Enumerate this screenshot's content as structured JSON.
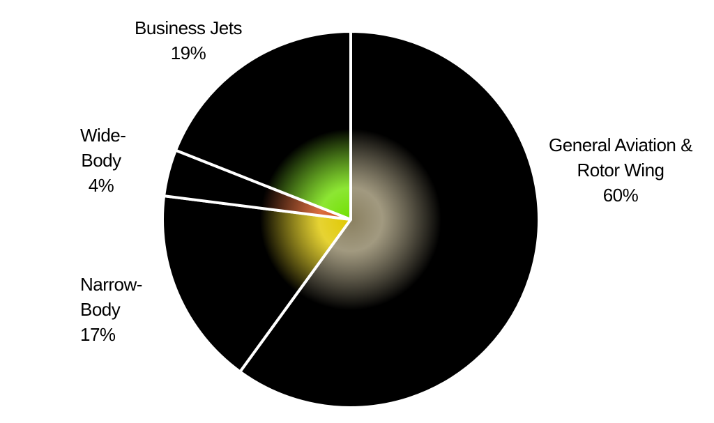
{
  "chart_data": {
    "type": "pie",
    "categories": [
      "General Aviation & Rotor Wing",
      "Narrow-Body",
      "Wide-Body",
      "Business Jets"
    ],
    "values": [
      60,
      17,
      4,
      19
    ],
    "value_labels": [
      "60%",
      "17%",
      "4%",
      "19%"
    ],
    "colors": [
      "#8a8060",
      "#e0c800",
      "#d04a10",
      "#70e000"
    ]
  }
}
